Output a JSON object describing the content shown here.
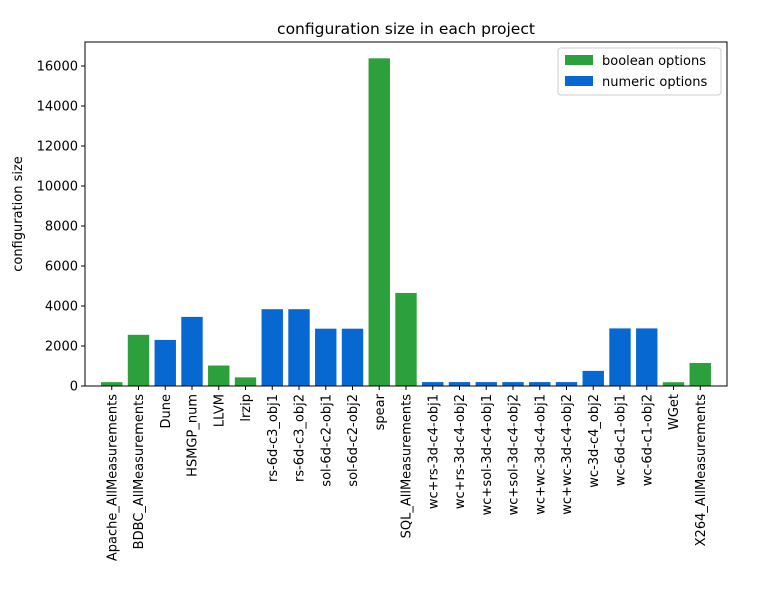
{
  "chart_data": {
    "type": "bar",
    "title": "configuration size in each project",
    "xlabel": "",
    "ylabel": "configuration size",
    "ylim": [
      0,
      17200
    ],
    "yticks": [
      0,
      2000,
      4000,
      6000,
      8000,
      10000,
      12000,
      14000,
      16000
    ],
    "legend_position": "top-right",
    "grid": false,
    "series_info": [
      {
        "name": "boolean options",
        "color": "#2ca03c"
      },
      {
        "name": "numeric options",
        "color": "#0868d2"
      }
    ],
    "bars": [
      {
        "category": "Apache_AllMeasurements",
        "value": 192,
        "series": "boolean options"
      },
      {
        "category": "BDBC_AllMeasurements",
        "value": 2560,
        "series": "boolean options"
      },
      {
        "category": "Dune",
        "value": 2304,
        "series": "numeric options"
      },
      {
        "category": "HSMGP_num",
        "value": 3456,
        "series": "numeric options"
      },
      {
        "category": "LLVM",
        "value": 1024,
        "series": "boolean options"
      },
      {
        "category": "lrzip",
        "value": 432,
        "series": "boolean options"
      },
      {
        "category": "rs-6d-c3_obj1",
        "value": 3840,
        "series": "numeric options"
      },
      {
        "category": "rs-6d-c3_obj2",
        "value": 3840,
        "series": "numeric options"
      },
      {
        "category": "sol-6d-c2-obj1",
        "value": 2866,
        "series": "numeric options"
      },
      {
        "category": "sol-6d-c2-obj2",
        "value": 2866,
        "series": "numeric options"
      },
      {
        "category": "spear",
        "value": 16384,
        "series": "boolean options"
      },
      {
        "category": "SQL_AllMeasurements",
        "value": 4653,
        "series": "boolean options"
      },
      {
        "category": "wc+rs-3d-c4-obj1",
        "value": 196,
        "series": "numeric options"
      },
      {
        "category": "wc+rs-3d-c4-obj2",
        "value": 196,
        "series": "numeric options"
      },
      {
        "category": "wc+sol-3d-c4-obj1",
        "value": 196,
        "series": "numeric options"
      },
      {
        "category": "wc+sol-3d-c4-obj2",
        "value": 196,
        "series": "numeric options"
      },
      {
        "category": "wc+wc-3d-c4-obj1",
        "value": 196,
        "series": "numeric options"
      },
      {
        "category": "wc+wc-3d-c4-obj2",
        "value": 196,
        "series": "numeric options"
      },
      {
        "category": "wc-3d-c4_obj2",
        "value": 756,
        "series": "numeric options"
      },
      {
        "category": "wc-6d-c1-obj1",
        "value": 2880,
        "series": "numeric options"
      },
      {
        "category": "wc-6d-c1-obj2",
        "value": 2880,
        "series": "numeric options"
      },
      {
        "category": "WGet",
        "value": 188,
        "series": "boolean options"
      },
      {
        "category": "X264_AllMeasurements",
        "value": 1152,
        "series": "boolean options"
      }
    ]
  }
}
